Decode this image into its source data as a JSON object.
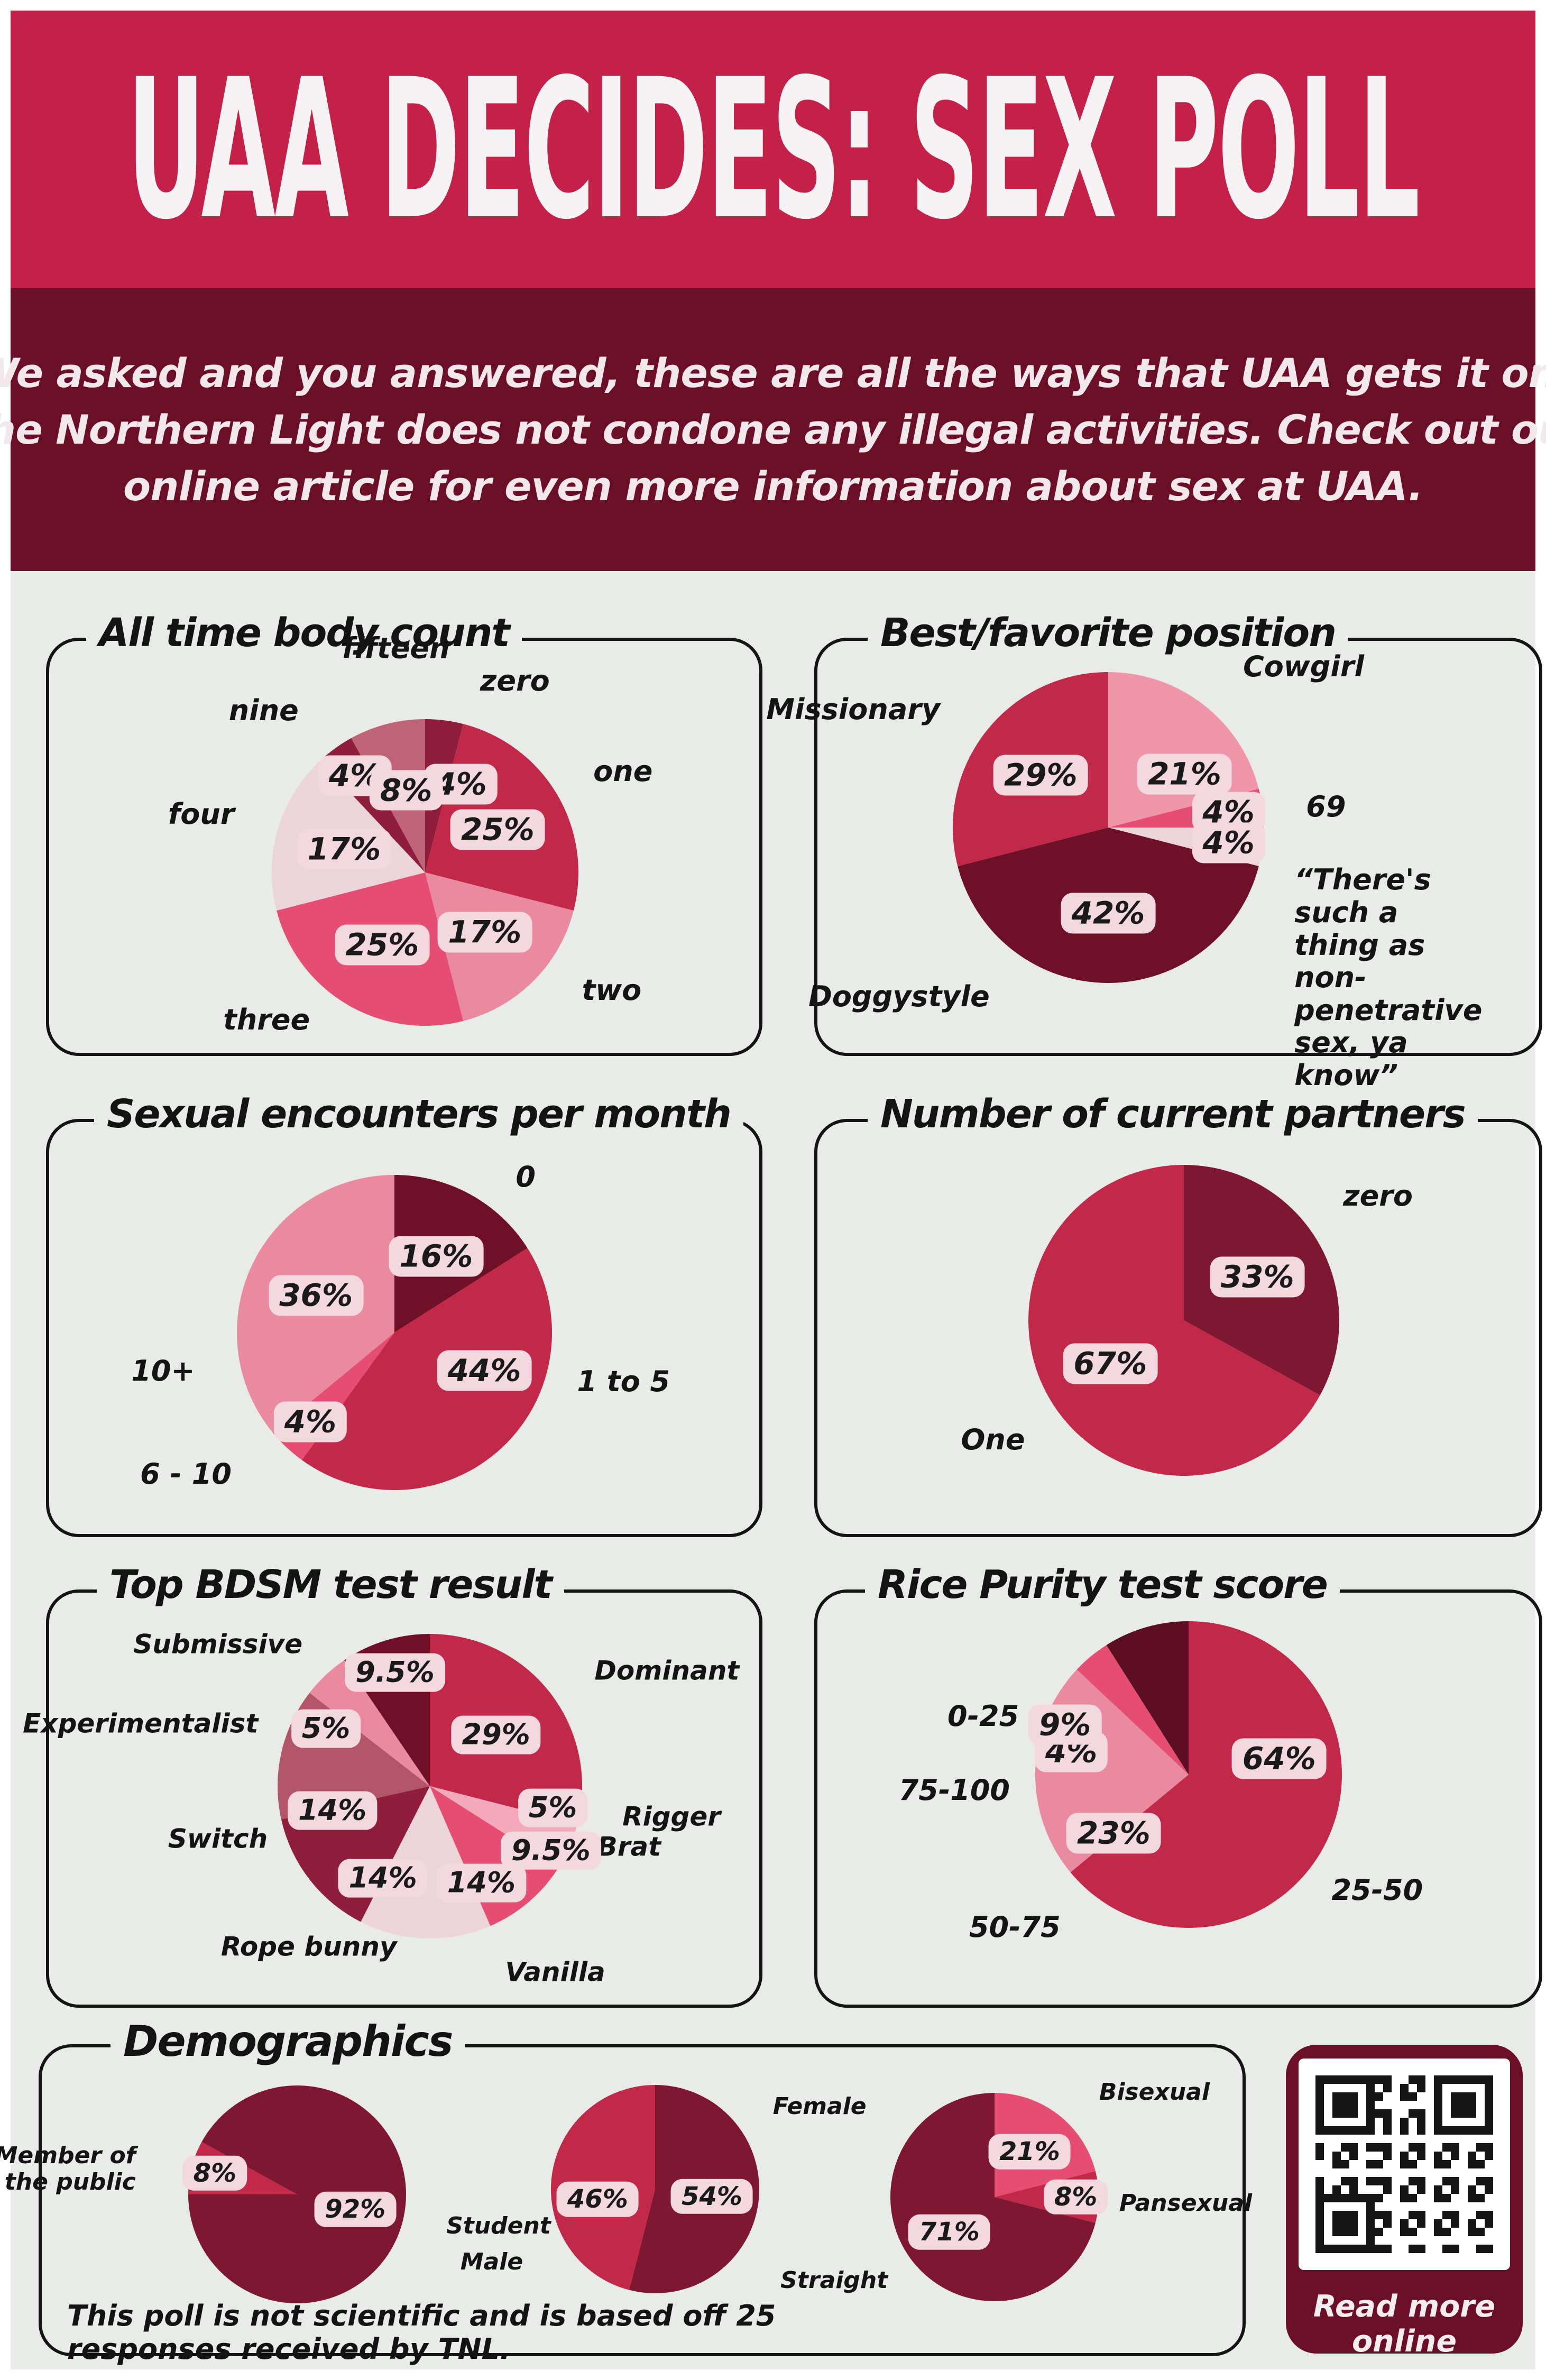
{
  "page": {
    "background": "#E8EBE8",
    "frame": "#FFFFFF"
  },
  "header": {
    "title": "UAA DECIDES: SEX POLL",
    "bg_color": "#C32148",
    "text_color": "#F7F3F4"
  },
  "intro": {
    "bg_color": "#6A0F27",
    "lines": [
      "We asked and you answered, these are all the ways that UAA gets it on.",
      "The Northern Light does not condone any illegal activities. Check out our",
      "online article for even more information about sex at UAA."
    ]
  },
  "demographics": {
    "title": "Demographics"
  },
  "footer_note": "This poll is not scientific and is based off 25 responses received by TNL.",
  "qr": {
    "caption": "Read more online"
  },
  "chart_data": [
    {
      "id": "body_count",
      "type": "pie",
      "title": "All time body count",
      "start_angle": 0,
      "slices": [
        {
          "label": "zero",
          "value": 4,
          "display": "4%",
          "color": "#8F1D3C"
        },
        {
          "label": "one",
          "value": 25,
          "display": "25%",
          "color": "#C22948"
        },
        {
          "label": "two",
          "value": 17,
          "display": "17%",
          "color": "#E98AA0"
        },
        {
          "label": "three",
          "value": 25,
          "display": "25%",
          "color": "#E54E72"
        },
        {
          "label": "four",
          "value": 17,
          "display": "17%",
          "color": "#EBD4DA"
        },
        {
          "label": "nine",
          "value": 4,
          "display": "4%",
          "color": "#8F1D3C"
        },
        {
          "label": "fifteen",
          "value": 8,
          "display": "8%",
          "color": "#BF6378"
        }
      ]
    },
    {
      "id": "position",
      "type": "pie",
      "title": "Best/favorite position",
      "start_angle": 0,
      "slices": [
        {
          "label": "Cowgirl",
          "value": 21,
          "display": "21%",
          "color": "#EF96AB"
        },
        {
          "label": "69",
          "value": 4,
          "display": "4%",
          "color": "#E54E72"
        },
        {
          "label": "“There's such a thing as non-penetrative sex, ya know”",
          "value": 4,
          "display": "4%",
          "color": "#EBD4DA"
        },
        {
          "label": "Doggystyle",
          "value": 42,
          "display": "42%",
          "color": "#6E1128"
        },
        {
          "label": "Missionary",
          "value": 29,
          "display": "29%",
          "color": "#C22948"
        }
      ]
    },
    {
      "id": "encounters",
      "type": "pie",
      "title": "Sexual encounters per month",
      "start_angle": 0,
      "slices": [
        {
          "label": "0",
          "value": 16,
          "display": "16%",
          "color": "#6E1128"
        },
        {
          "label": "1 to 5",
          "value": 44,
          "display": "44%",
          "color": "#C22948"
        },
        {
          "label": "6 - 10",
          "value": 4,
          "display": "4%",
          "color": "#E54E72"
        },
        {
          "label": "10+",
          "value": 36,
          "display": "36%",
          "color": "#E98AA0"
        }
      ]
    },
    {
      "id": "partners",
      "type": "pie",
      "title": "Number of current partners",
      "start_angle": 0,
      "slices": [
        {
          "label": "zero",
          "value": 33,
          "display": "33%",
          "color": "#7E1731"
        },
        {
          "label": "One",
          "value": 67,
          "display": "67%",
          "color": "#C22948"
        }
      ]
    },
    {
      "id": "bdsm",
      "type": "pie",
      "title": "Top BDSM test result",
      "start_angle": 0,
      "slices": [
        {
          "label": "Dominant",
          "value": 29,
          "display": "29%",
          "color": "#C22948"
        },
        {
          "label": "Rigger",
          "value": 5,
          "display": "5%",
          "color": "#F2A9BC"
        },
        {
          "label": "Brat",
          "value": 9.5,
          "display": "9.5%",
          "color": "#E54E72"
        },
        {
          "label": "Vanilla",
          "value": 14,
          "display": "14%",
          "color": "#EBD4DA"
        },
        {
          "label": "Rope bunny",
          "value": 14,
          "display": "14%",
          "color": "#8F1D3C"
        },
        {
          "label": "Switch",
          "value": 14,
          "display": "14%",
          "color": "#B25568"
        },
        {
          "label": "Experimentalist",
          "value": 5,
          "display": "5%",
          "color": "#E98AA0"
        },
        {
          "label": "Submissive",
          "value": 9.5,
          "display": "9.5%",
          "color": "#6E1128"
        }
      ]
    },
    {
      "id": "rice",
      "type": "pie",
      "title": "Rice Purity test score",
      "start_angle": 0,
      "slices": [
        {
          "label": "25-50",
          "value": 64,
          "display": "64%",
          "color": "#C22948"
        },
        {
          "label": "50-75",
          "value": 23,
          "display": "23%",
          "color": "#E98AA0"
        },
        {
          "label": "75-100",
          "value": 4,
          "display": "4%",
          "color": "#E54E72"
        },
        {
          "label": "0-25",
          "value": 9,
          "display": "9%",
          "color": "#5C0E22"
        }
      ]
    },
    {
      "id": "demo_affiliation",
      "type": "pie",
      "title": "",
      "start_angle": 270,
      "slices": [
        {
          "label": "Member of the public",
          "value": 8,
          "display": "8%",
          "color": "#C22948"
        },
        {
          "label": "Student",
          "value": 92,
          "display": "92%",
          "color": "#7E1731"
        }
      ]
    },
    {
      "id": "demo_gender",
      "type": "pie",
      "title": "",
      "start_angle": 0,
      "slices": [
        {
          "label": "Female",
          "value": 54,
          "display": "54%",
          "color": "#7E1731"
        },
        {
          "label": "Male",
          "value": 46,
          "display": "46%",
          "color": "#C22948"
        }
      ]
    },
    {
      "id": "demo_orientation",
      "type": "pie",
      "title": "",
      "start_angle": 0,
      "slices": [
        {
          "label": "Bisexual",
          "value": 21,
          "display": "21%",
          "color": "#E54E72"
        },
        {
          "label": "Pansexual",
          "value": 8,
          "display": "8%",
          "color": "#C22948"
        },
        {
          "label": "Straight",
          "value": 71,
          "display": "71%",
          "color": "#7E1731"
        }
      ]
    }
  ]
}
